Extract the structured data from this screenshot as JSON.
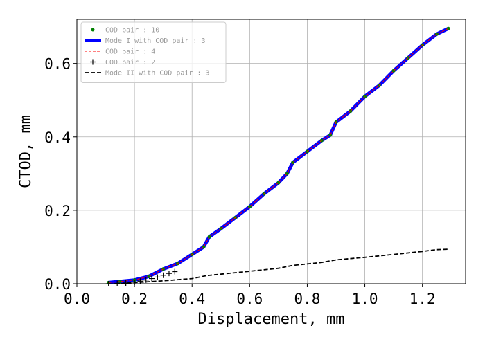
{
  "chart_data": {
    "type": "line",
    "title": "",
    "xlabel": "Displacement, mm",
    "ylabel": "CTOD, mm",
    "xlim": [
      0.0,
      1.35
    ],
    "ylim": [
      0.0,
      0.72
    ],
    "xticks": [
      "0.0",
      "0.2",
      "0.4",
      "0.6",
      "0.8",
      "1.0",
      "1.2"
    ],
    "yticks": [
      "0.0",
      "0.2",
      "0.4",
      "0.6"
    ],
    "grid": true,
    "legend_position": "top-left",
    "series": [
      {
        "name": "COD pair : 10",
        "style": "markers",
        "color": "#008000",
        "x": [
          0.11,
          0.15,
          0.2,
          0.25,
          0.3,
          0.35,
          0.4,
          0.44,
          0.46,
          0.5,
          0.55,
          0.6,
          0.65,
          0.7,
          0.73,
          0.75,
          0.8,
          0.85,
          0.88,
          0.9,
          0.95,
          1.0,
          1.05,
          1.1,
          1.15,
          1.2,
          1.25,
          1.29
        ],
        "y": [
          0.003,
          0.006,
          0.01,
          0.02,
          0.04,
          0.055,
          0.08,
          0.1,
          0.128,
          0.15,
          0.18,
          0.21,
          0.245,
          0.275,
          0.3,
          0.33,
          0.36,
          0.39,
          0.405,
          0.44,
          0.47,
          0.51,
          0.54,
          0.58,
          0.615,
          0.65,
          0.68,
          0.695
        ]
      },
      {
        "name": "Mode I with COD pair : 3",
        "style": "solid-thick",
        "color": "#0000ff",
        "x": [
          0.11,
          0.15,
          0.2,
          0.25,
          0.3,
          0.35,
          0.4,
          0.44,
          0.46,
          0.5,
          0.55,
          0.6,
          0.65,
          0.7,
          0.73,
          0.75,
          0.8,
          0.85,
          0.88,
          0.9,
          0.95,
          1.0,
          1.05,
          1.1,
          1.15,
          1.2,
          1.25,
          1.29
        ],
        "y": [
          0.003,
          0.006,
          0.01,
          0.02,
          0.04,
          0.055,
          0.08,
          0.1,
          0.128,
          0.15,
          0.18,
          0.21,
          0.245,
          0.275,
          0.3,
          0.33,
          0.36,
          0.39,
          0.405,
          0.44,
          0.47,
          0.51,
          0.54,
          0.58,
          0.615,
          0.65,
          0.68,
          0.695
        ]
      },
      {
        "name": "COD pair : 4",
        "style": "dashed-thin",
        "color": "#ff0000",
        "x": [
          0.11,
          0.15,
          0.2,
          0.25,
          0.3,
          0.35,
          0.4,
          0.44,
          0.46,
          0.5,
          0.55,
          0.6,
          0.65,
          0.7,
          0.73,
          0.75,
          0.8,
          0.85,
          0.88,
          0.9,
          0.95,
          1.0,
          1.05,
          1.1,
          1.15,
          1.2,
          1.25,
          1.29
        ],
        "y": [
          0.003,
          0.006,
          0.01,
          0.02,
          0.04,
          0.055,
          0.08,
          0.1,
          0.128,
          0.15,
          0.18,
          0.21,
          0.245,
          0.275,
          0.3,
          0.33,
          0.36,
          0.39,
          0.405,
          0.44,
          0.47,
          0.51,
          0.54,
          0.58,
          0.615,
          0.65,
          0.68,
          0.695
        ]
      },
      {
        "name": "COD pair : 2",
        "style": "plus-markers",
        "color": "#000000",
        "x": [
          0.11,
          0.14,
          0.17,
          0.2,
          0.22,
          0.24,
          0.26,
          0.28,
          0.3,
          0.32,
          0.34
        ],
        "y": [
          0.0,
          0.001,
          0.002,
          0.004,
          0.007,
          0.01,
          0.014,
          0.018,
          0.023,
          0.028,
          0.033
        ]
      },
      {
        "name": "Mode II with COD pair : 3",
        "style": "dashed",
        "color": "#000000",
        "x": [
          0.11,
          0.2,
          0.3,
          0.4,
          0.45,
          0.5,
          0.6,
          0.7,
          0.75,
          0.8,
          0.85,
          0.9,
          1.0,
          1.1,
          1.2,
          1.25,
          1.29
        ],
        "y": [
          0.0,
          0.003,
          0.008,
          0.014,
          0.022,
          0.026,
          0.034,
          0.042,
          0.05,
          0.054,
          0.058,
          0.065,
          0.072,
          0.08,
          0.088,
          0.093,
          0.094
        ]
      }
    ]
  }
}
